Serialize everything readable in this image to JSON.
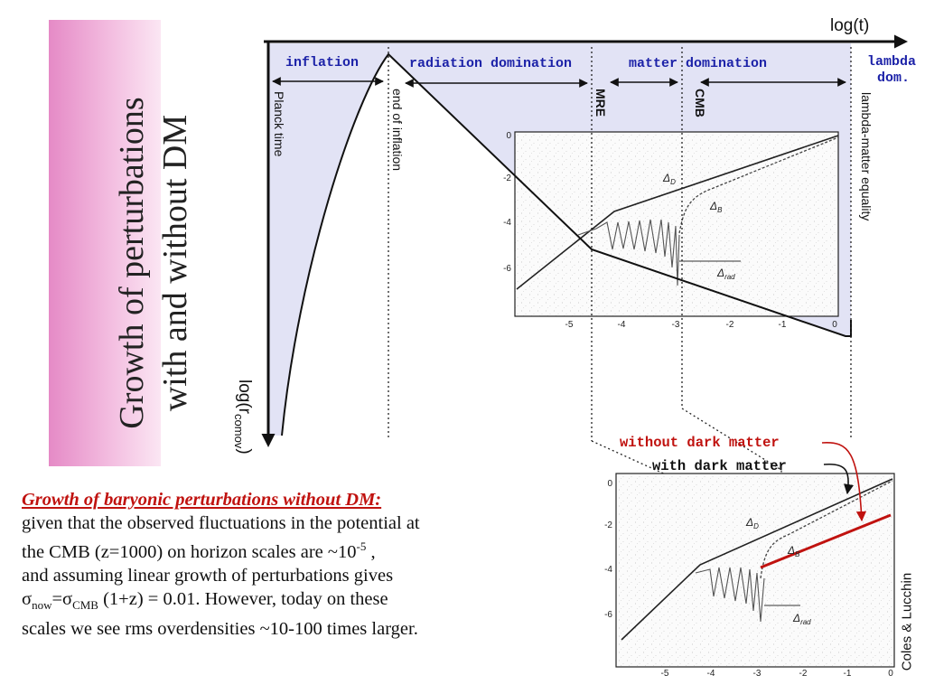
{
  "title": {
    "line1": "Growth of  perturbations",
    "line2": "with and without DM"
  },
  "axes": {
    "x_label": "log(t)",
    "y_label_main": "log(r",
    "y_label_sub": "comov",
    "y_label_close": ")"
  },
  "eras": {
    "inflation": "inflation",
    "radiation": "radiation domination",
    "matter": "matter domination",
    "lambda_line1": "lambda",
    "lambda_line2": "dom."
  },
  "events": {
    "planck": "Planck time",
    "end_inflation": "end of inflation",
    "mre": "MRE",
    "cmb": "CMB",
    "lambda_matter": "lambda-matter equality"
  },
  "plot_labels": {
    "dark": "Δ",
    "dark_sub": "D",
    "baryon": "Δ",
    "baryon_sub": "B",
    "radiation": "Δ",
    "radiation_sub": "rad"
  },
  "callouts": {
    "without_dm": "without dark matter",
    "with_dm": "with dark matter"
  },
  "growth_plot": {
    "x_ticks": [
      "-5",
      "-4",
      "-3",
      "-2",
      "-1",
      "0"
    ],
    "y_ticks": [
      "0",
      "-2",
      "-4",
      "-6"
    ]
  },
  "body": {
    "heading": "Growth of baryonic perturbations without DM:",
    "line1": "given that the observed fluctuations in the potential at",
    "line2_pre": "the CMB (z=1000) on horizon scales are   ~10",
    "line2_sup": "-5",
    "line2_post": " ,",
    "line3": "and assuming linear growth of perturbations gives",
    "line4_s1": "σ",
    "line4_sub1": "now",
    "line4_eq": "=σ",
    "line4_sub2": "CMB",
    "line4_post": " (1+z) = 0.01.  However, today on these",
    "line5": "scales we see rms overdensities ~10-100 times larger."
  },
  "credit": "Coles & Lucchin",
  "colors": {
    "accent_blue": "#1c22a8",
    "accent_red": "#c0120f",
    "shade": "#e2e3f5",
    "title_pink": "#e58ac6"
  }
}
